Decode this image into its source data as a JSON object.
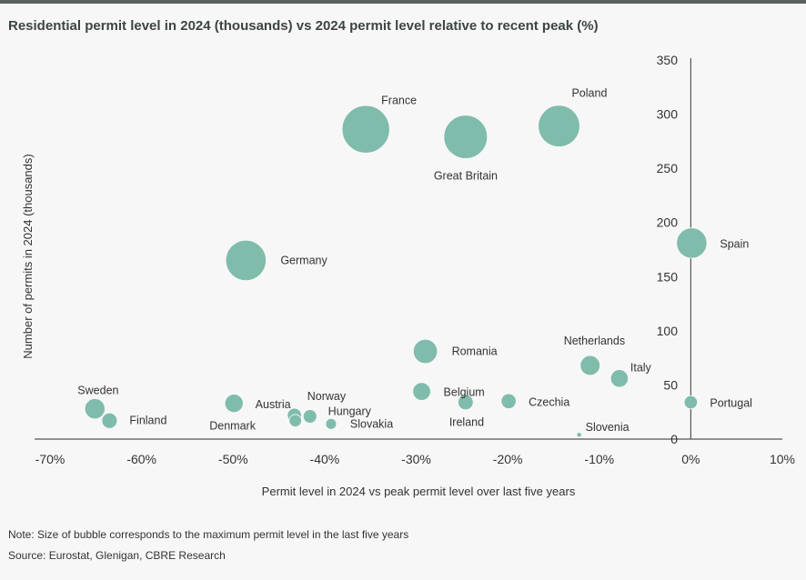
{
  "chart_data": {
    "type": "scatter",
    "subtype": "bubble",
    "title": "Residential permit level in 2024 (thousands) vs 2024 permit level relative to recent peak (%)",
    "xlabel": "Permit level in 2024 vs peak permit level over last five years",
    "ylabel": "Number of permits in 2024 (thousands)",
    "xlim": [
      -70,
      10
    ],
    "ylim": [
      0,
      350
    ],
    "x_ticks": [
      "-70%",
      "-60%",
      "-50%",
      "-40%",
      "-30%",
      "-20%",
      "-10%",
      "0%",
      "10%"
    ],
    "x_tick_values": [
      -70,
      -60,
      -50,
      -40,
      -30,
      -20,
      -10,
      0,
      10
    ],
    "y_ticks": [
      "0",
      "50",
      "100",
      "150",
      "200",
      "250",
      "300",
      "350"
    ],
    "y_tick_values": [
      0,
      50,
      100,
      150,
      200,
      250,
      300,
      350
    ],
    "grid": false,
    "bubble_color": "#7fbcab",
    "points": [
      {
        "label": "France",
        "x": -35.5,
        "y": 286
      },
      {
        "label": "Great Britain",
        "x": -24.6,
        "y": 279
      },
      {
        "label": "Poland",
        "x": -14.4,
        "y": 289
      },
      {
        "label": "Germany",
        "x": -48.6,
        "y": 165
      },
      {
        "label": "Spain",
        "x": 0.1,
        "y": 181
      },
      {
        "label": "Romania",
        "x": -29.0,
        "y": 81
      },
      {
        "label": "Netherlands",
        "x": -11.0,
        "y": 68
      },
      {
        "label": "Italy",
        "x": -7.8,
        "y": 56
      },
      {
        "label": "Belgium",
        "x": -29.4,
        "y": 44
      },
      {
        "label": "Ireland",
        "x": -24.6,
        "y": 34
      },
      {
        "label": "Czechia",
        "x": -19.9,
        "y": 35
      },
      {
        "label": "Portugal",
        "x": 0.0,
        "y": 34
      },
      {
        "label": "Slovenia",
        "x": -12.2,
        "y": 4
      },
      {
        "label": "Sweden",
        "x": -65.1,
        "y": 28
      },
      {
        "label": "Finland",
        "x": -63.5,
        "y": 17
      },
      {
        "label": "Denmark",
        "x": -49.9,
        "y": 33
      },
      {
        "label": "Austria",
        "x": -43.3,
        "y": 22
      },
      {
        "label": "Norway",
        "x": -41.6,
        "y": 21
      },
      {
        "label": "Hungary",
        "x": -43.2,
        "y": 17
      },
      {
        "label": "Slovakia",
        "x": -39.3,
        "y": 14
      }
    ]
  },
  "notes": {
    "note": "Note: Size of bubble corresponds to the maximum permit level in the last five years",
    "source": "Source: Eurostat, Glenigan, CBRE Research"
  }
}
